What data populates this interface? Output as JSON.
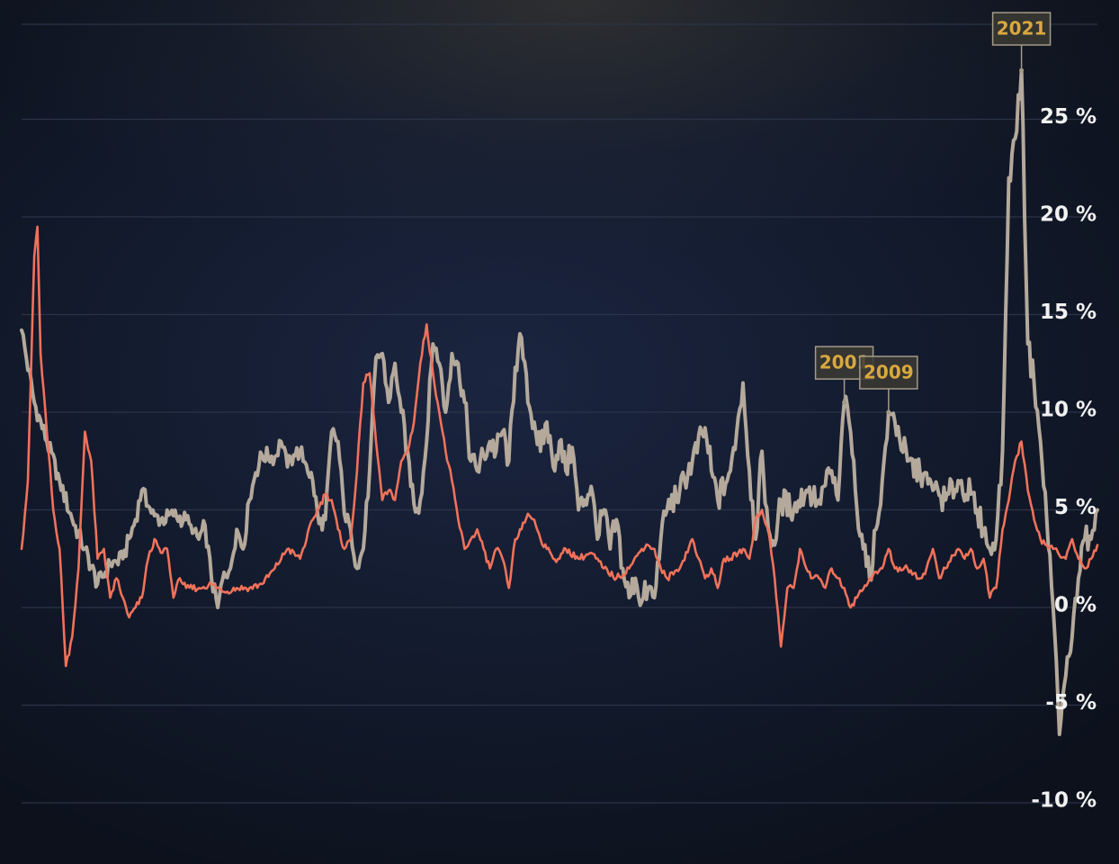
{
  "chart_data": {
    "type": "line",
    "title": "",
    "xlabel": "",
    "ylabel": "",
    "ylim": [
      -10,
      30
    ],
    "yticks": [
      {
        "value": 25,
        "label": "25 %"
      },
      {
        "value": 20,
        "label": "20 %"
      },
      {
        "value": 15,
        "label": "15 %"
      },
      {
        "value": 10,
        "label": "10 %"
      },
      {
        "value": 5,
        "label": "5 %"
      },
      {
        "value": 0,
        "label": "0 %"
      },
      {
        "value": -5,
        "label": "-5 %"
      },
      {
        "value": -10,
        "label": "-10 %"
      }
    ],
    "grid": true,
    "legend": "none",
    "colors": {
      "grey_series": "#b4a99b",
      "red_series": "#f0725a",
      "annotation_text": "#d9a83f",
      "annotation_border": "#a39a88",
      "annotation_fill": "#3b3a34",
      "gridline": "#2b3447",
      "tick_text": "#f2f2f2"
    },
    "series": [
      {
        "color": "#b4a99b",
        "values": [
          [
            0,
            14.2
          ],
          [
            2,
            10.5
          ],
          [
            4,
            8.5
          ],
          [
            6,
            6.5
          ],
          [
            8,
            4.5
          ],
          [
            10,
            3.0
          ],
          [
            12,
            1.2
          ],
          [
            14,
            2.2
          ],
          [
            16,
            2.5
          ],
          [
            18,
            4.5
          ],
          [
            19,
            6.0
          ],
          [
            20,
            5.2
          ],
          [
            21,
            4.7
          ],
          [
            22,
            4.5
          ],
          [
            24,
            4.7
          ],
          [
            26,
            4.5
          ],
          [
            27,
            3.8
          ],
          [
            28,
            3.5
          ],
          [
            29,
            4.2
          ],
          [
            30,
            1.5
          ],
          [
            31,
            0
          ],
          [
            32,
            1.8
          ],
          [
            33,
            2.0
          ],
          [
            34,
            4.0
          ],
          [
            35,
            3.0
          ],
          [
            36,
            5.5
          ],
          [
            37,
            6.9
          ],
          [
            38,
            7.8
          ],
          [
            40,
            7.7
          ],
          [
            41,
            8.5
          ],
          [
            42,
            7.2
          ],
          [
            43,
            7.8
          ],
          [
            44,
            8.0
          ],
          [
            45,
            7.3
          ],
          [
            46,
            6.5
          ],
          [
            47,
            4.3
          ],
          [
            48,
            4.5
          ],
          [
            49,
            9.0
          ],
          [
            50,
            8.5
          ],
          [
            51,
            4.8
          ],
          [
            52,
            4.0
          ],
          [
            53,
            2.0
          ],
          [
            54,
            3.0
          ],
          [
            55,
            7.0
          ],
          [
            56,
            12.8
          ],
          [
            57,
            13.0
          ],
          [
            58,
            10.5
          ],
          [
            59,
            12.5
          ],
          [
            60,
            10.0
          ],
          [
            61,
            8.0
          ],
          [
            62,
            5.3
          ],
          [
            63,
            5.5
          ],
          [
            64,
            8.5
          ],
          [
            65,
            13.5
          ],
          [
            66,
            12.5
          ],
          [
            67,
            10.0
          ],
          [
            68,
            13.0
          ],
          [
            69,
            12.5
          ],
          [
            70,
            10.5
          ],
          [
            71,
            7.5
          ],
          [
            72,
            7.0
          ],
          [
            73,
            7.8
          ],
          [
            74,
            8.5
          ],
          [
            75,
            8.0
          ],
          [
            76,
            9.0
          ],
          [
            77,
            7.5
          ],
          [
            78,
            12.3
          ],
          [
            79,
            13.8
          ],
          [
            80,
            10.5
          ],
          [
            81,
            9.5
          ],
          [
            82,
            8.0
          ],
          [
            83,
            9.5
          ],
          [
            84,
            7.2
          ],
          [
            85,
            8.5
          ],
          [
            86,
            7.0
          ],
          [
            87,
            8.2
          ],
          [
            88,
            5.0
          ],
          [
            89,
            5.5
          ],
          [
            90,
            6.2
          ],
          [
            91,
            3.5
          ],
          [
            92,
            5.0
          ],
          [
            93,
            3.0
          ],
          [
            94,
            4.5
          ],
          [
            95,
            2.0
          ],
          [
            96,
            0.5
          ],
          [
            97,
            1.5
          ],
          [
            98,
            0.3
          ],
          [
            99,
            1.0
          ],
          [
            100,
            0.5
          ],
          [
            101,
            3.5
          ],
          [
            102,
            5.0
          ],
          [
            104,
            6.0
          ],
          [
            106,
            7.5
          ],
          [
            108,
            9.2
          ],
          [
            109,
            7.0
          ],
          [
            110,
            5.5
          ],
          [
            112,
            7.0
          ],
          [
            113,
            9.0
          ],
          [
            114,
            11.5
          ],
          [
            115,
            7.0
          ],
          [
            116,
            3.5
          ],
          [
            117,
            8.0
          ],
          [
            118,
            4.0
          ],
          [
            119,
            3.2
          ],
          [
            120,
            5.5
          ],
          [
            122,
            5.0
          ],
          [
            124,
            6.0
          ],
          [
            126,
            5.5
          ],
          [
            128,
            7.0
          ],
          [
            129,
            5.5
          ],
          [
            130,
            10.5
          ],
          [
            131,
            9.0
          ],
          [
            132,
            5.0
          ],
          [
            133,
            3.0
          ],
          [
            134,
            1.5
          ],
          [
            135,
            4.0
          ],
          [
            136,
            6.5
          ],
          [
            137,
            10.0
          ],
          [
            138,
            9.5
          ],
          [
            140,
            7.5
          ],
          [
            142,
            6.8
          ],
          [
            144,
            6.0
          ],
          [
            146,
            5.5
          ],
          [
            148,
            6.5
          ],
          [
            150,
            5.8
          ],
          [
            151,
            5.0
          ],
          [
            152,
            4.0
          ],
          [
            153,
            3.0
          ],
          [
            154,
            3.5
          ],
          [
            155,
            8.0
          ],
          [
            156,
            22.0
          ],
          [
            157,
            24.0
          ],
          [
            158,
            27.5
          ],
          [
            159,
            13.5
          ],
          [
            160,
            11.5
          ],
          [
            161,
            8.5
          ],
          [
            162,
            4.5
          ],
          [
            163,
            0
          ],
          [
            164,
            -6.5
          ],
          [
            165,
            -3.5
          ],
          [
            166,
            -1.5
          ],
          [
            167,
            1.5
          ],
          [
            168,
            3.5
          ],
          [
            169,
            3.5
          ],
          [
            170,
            5.0
          ]
        ]
      },
      {
        "color": "#f0725a",
        "values": [
          [
            0,
            3.0
          ],
          [
            1,
            6.5
          ],
          [
            2,
            18.0
          ],
          [
            2.5,
            19.5
          ],
          [
            3,
            13.0
          ],
          [
            4,
            9.0
          ],
          [
            5,
            5.0
          ],
          [
            6,
            3.0
          ],
          [
            7,
            -3.0
          ],
          [
            8,
            -1.5
          ],
          [
            9,
            2.0
          ],
          [
            10,
            9.0
          ],
          [
            11,
            7.5
          ],
          [
            12,
            2.5
          ],
          [
            13,
            3.0
          ],
          [
            14,
            0.5
          ],
          [
            15,
            1.5
          ],
          [
            16,
            0.5
          ],
          [
            17,
            -0.5
          ],
          [
            18,
            0
          ],
          [
            19,
            0.5
          ],
          [
            20,
            2.5
          ],
          [
            21,
            3.5
          ],
          [
            22,
            2.8
          ],
          [
            23,
            3.0
          ],
          [
            24,
            0.5
          ],
          [
            25,
            1.5
          ],
          [
            26,
            1.0
          ],
          [
            28,
            1.0
          ],
          [
            30,
            1.2
          ],
          [
            32,
            0.8
          ],
          [
            34,
            1.0
          ],
          [
            36,
            1.0
          ],
          [
            38,
            1.2
          ],
          [
            40,
            2.0
          ],
          [
            42,
            3.0
          ],
          [
            44,
            2.5
          ],
          [
            46,
            4.5
          ],
          [
            48,
            5.8
          ],
          [
            49,
            5.5
          ],
          [
            50,
            4.0
          ],
          [
            51,
            3.0
          ],
          [
            52,
            3.5
          ],
          [
            53,
            7.0
          ],
          [
            54,
            11.5
          ],
          [
            55,
            12.0
          ],
          [
            56,
            8.5
          ],
          [
            57,
            5.5
          ],
          [
            58,
            6.0
          ],
          [
            59,
            5.5
          ],
          [
            60,
            7.5
          ],
          [
            61,
            8.0
          ],
          [
            62,
            9.5
          ],
          [
            63,
            12.5
          ],
          [
            64,
            14.5
          ],
          [
            65,
            12.0
          ],
          [
            66,
            10.0
          ],
          [
            67,
            8.0
          ],
          [
            68,
            6.5
          ],
          [
            69,
            4.5
          ],
          [
            70,
            3.0
          ],
          [
            71,
            3.5
          ],
          [
            72,
            4.0
          ],
          [
            73,
            3.0
          ],
          [
            74,
            2.0
          ],
          [
            75,
            3.0
          ],
          [
            76,
            2.5
          ],
          [
            77,
            1.0
          ],
          [
            78,
            3.5
          ],
          [
            79,
            4.0
          ],
          [
            80,
            4.8
          ],
          [
            81,
            4.5
          ],
          [
            82,
            3.5
          ],
          [
            83,
            3.0
          ],
          [
            84,
            2.5
          ],
          [
            85,
            2.5
          ],
          [
            86,
            3.0
          ],
          [
            88,
            2.5
          ],
          [
            90,
            2.8
          ],
          [
            92,
            2.0
          ],
          [
            94,
            1.5
          ],
          [
            96,
            2.0
          ],
          [
            98,
            3.0
          ],
          [
            99,
            3.2
          ],
          [
            100,
            3.0
          ],
          [
            101,
            2.0
          ],
          [
            102,
            1.5
          ],
          [
            104,
            2.0
          ],
          [
            106,
            3.5
          ],
          [
            107,
            2.5
          ],
          [
            108,
            1.5
          ],
          [
            109,
            2.0
          ],
          [
            110,
            1.0
          ],
          [
            111,
            2.5
          ],
          [
            112,
            2.5
          ],
          [
            114,
            3.0
          ],
          [
            115,
            2.5
          ],
          [
            116,
            4.5
          ],
          [
            117,
            5.0
          ],
          [
            118,
            4.0
          ],
          [
            119,
            1.5
          ],
          [
            120,
            -2.0
          ],
          [
            121,
            1.0
          ],
          [
            122,
            1.0
          ],
          [
            123,
            3.0
          ],
          [
            124,
            2.0
          ],
          [
            125,
            1.5
          ],
          [
            126,
            1.5
          ],
          [
            127,
            1.0
          ],
          [
            128,
            2.0
          ],
          [
            129,
            1.5
          ],
          [
            130,
            1.0
          ],
          [
            131,
            0
          ],
          [
            132,
            0.5
          ],
          [
            134,
            1.5
          ],
          [
            136,
            2.0
          ],
          [
            137,
            3.0
          ],
          [
            138,
            2.0
          ],
          [
            140,
            2.0
          ],
          [
            142,
            1.5
          ],
          [
            143,
            2.0
          ],
          [
            144,
            3.0
          ],
          [
            145,
            1.5
          ],
          [
            146,
            2.0
          ],
          [
            148,
            3.0
          ],
          [
            149,
            2.5
          ],
          [
            150,
            3.0
          ],
          [
            151,
            2.0
          ],
          [
            152,
            2.5
          ],
          [
            153,
            0.5
          ],
          [
            154,
            1.0
          ],
          [
            155,
            4.0
          ],
          [
            156,
            5.5
          ],
          [
            157,
            7.5
          ],
          [
            158,
            8.5
          ],
          [
            159,
            6.0
          ],
          [
            160,
            4.5
          ],
          [
            161,
            3.5
          ],
          [
            162,
            3.2
          ],
          [
            163,
            3.0
          ],
          [
            165,
            2.5
          ],
          [
            166,
            3.5
          ],
          [
            167,
            2.5
          ],
          [
            168,
            2.0
          ],
          [
            169,
            2.5
          ],
          [
            170,
            3.2
          ]
        ]
      }
    ],
    "annotations": [
      {
        "text": "2001",
        "x": 130,
        "y": 10.5
      },
      {
        "text": "2009",
        "x": 137,
        "y": 10.0
      },
      {
        "text": "2021",
        "x": 158,
        "y": 27.5
      }
    ]
  }
}
